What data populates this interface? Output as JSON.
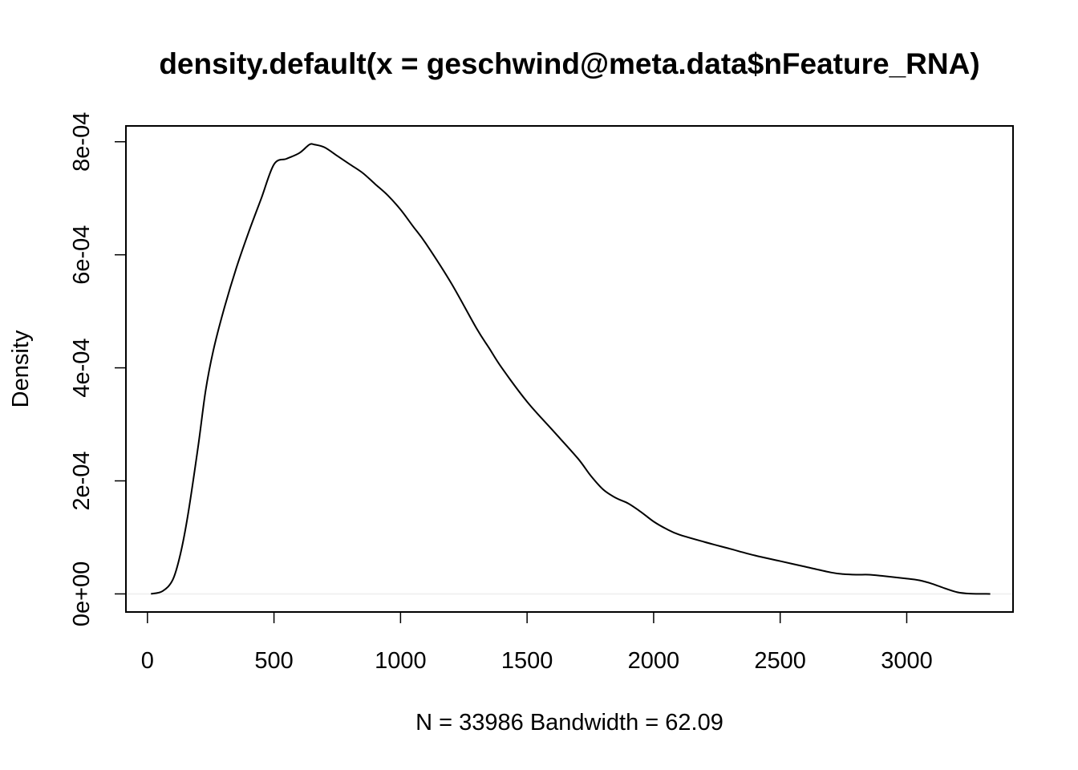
{
  "chart_data": {
    "type": "line",
    "title": "density.default(x = geschwind@meta.data$nFeature_RNA)",
    "xlabel": "N = 33986   Bandwidth = 62.09",
    "ylabel": "Density",
    "xlim": [
      -85,
      3420
    ],
    "ylim": [
      -3.2e-05,
      0.000828
    ],
    "x_ticks": [
      0,
      500,
      1000,
      1500,
      2000,
      2500,
      3000
    ],
    "x_tick_labels": [
      "0",
      "500",
      "1000",
      "1500",
      "2000",
      "2500",
      "3000"
    ],
    "y_ticks": [
      0,
      0.0002,
      0.0004,
      0.0006,
      0.0008
    ],
    "y_tick_labels": [
      "0e+00",
      "2e-04",
      "4e-04",
      "6e-04",
      "8e-04"
    ],
    "grid": false,
    "baseline_at_zero": true,
    "series": [
      {
        "x": [
          14,
          60,
          100,
          130,
          160,
          200,
          230,
          260,
          300,
          350,
          400,
          450,
          500,
          550,
          600,
          640,
          660,
          700,
          750,
          800,
          850,
          900,
          950,
          1000,
          1050,
          1100,
          1200,
          1300,
          1350,
          1400,
          1500,
          1600,
          1700,
          1750,
          1800,
          1850,
          1900,
          1950,
          2000,
          2050,
          2100,
          2200,
          2300,
          2400,
          2500,
          2600,
          2700,
          2750,
          2800,
          2850,
          2900,
          3000,
          3050,
          3100,
          3150,
          3200,
          3250,
          3330
        ],
        "y": [
          0.0,
          5e-06,
          2.5e-05,
          7e-05,
          0.00014,
          0.00026,
          0.00036,
          0.00043,
          0.0005,
          0.000575,
          0.00064,
          0.0007,
          0.00076,
          0.00077,
          0.00078,
          0.000795,
          0.000795,
          0.00079,
          0.000775,
          0.00076,
          0.000745,
          0.000725,
          0.000705,
          0.00068,
          0.00065,
          0.00062,
          0.00055,
          0.00047,
          0.000435,
          0.0004,
          0.00034,
          0.00029,
          0.00024,
          0.00021,
          0.000185,
          0.00017,
          0.00016,
          0.000145,
          0.000128,
          0.000115,
          0.000105,
          9.2e-05,
          8e-05,
          6.8e-05,
          5.8e-05,
          4.8e-05,
          3.8e-05,
          3.5e-05,
          3.4e-05,
          3.4e-05,
          3.2e-05,
          2.7e-05,
          2.4e-05,
          1.8e-05,
          1e-05,
          3e-06,
          5e-07,
          0.0
        ]
      }
    ]
  }
}
